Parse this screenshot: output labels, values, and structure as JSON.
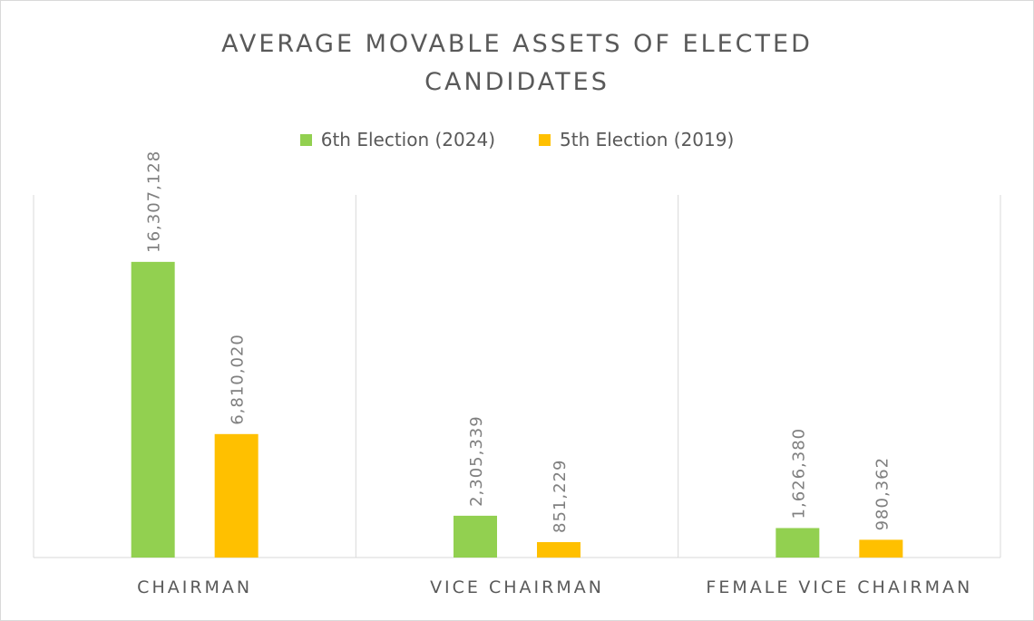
{
  "chart_data": {
    "type": "bar",
    "title": "AVERAGE MOVABLE ASSETS OF ELECTED CANDIDATES",
    "title_lines": [
      "AVERAGE MOVABLE ASSETS OF ELECTED",
      "CANDIDATES"
    ],
    "categories": [
      "CHAIRMAN",
      "VICE CHAIRMAN",
      "FEMALE VICE CHAIRMAN"
    ],
    "series": [
      {
        "name": "6th Election (2024)",
        "color": "#92d050",
        "values": [
          16307128,
          2305339,
          1626380
        ],
        "labels": [
          "16,307,128",
          "2,305,339",
          "1,626,380"
        ]
      },
      {
        "name": "5th Election (2019)",
        "color": "#ffc000",
        "values": [
          6810020,
          851229,
          980362
        ],
        "labels": [
          "6,810,020",
          "851,229",
          "980,362"
        ]
      }
    ],
    "ylim": [
      0,
      20000000
    ],
    "xlabel": "",
    "ylabel": "",
    "grid": false,
    "legend_position": "top",
    "data_labels": "rotated vertical above bars",
    "axis_color": "#d9d9d9"
  }
}
